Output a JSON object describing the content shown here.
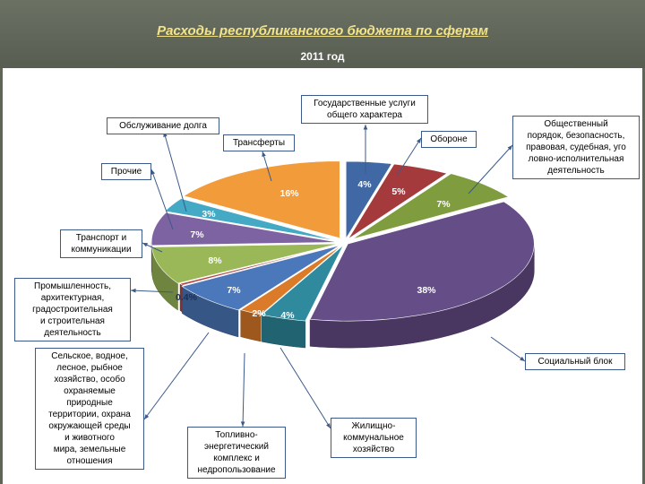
{
  "page": {
    "title": "Расходы республиканского бюджета по сферам",
    "subtitle": "2011 год"
  },
  "colors": {
    "background": "#5f6557",
    "title": "#f3e48a",
    "callout_border": "#3b5a8a"
  },
  "chart_data": {
    "type": "pie",
    "style": "3d-exploded",
    "title": "",
    "unit": "%",
    "slices": [
      {
        "label": "Государственные услуги общего характера",
        "value": 4,
        "display": "4%",
        "color": "#3f68a5"
      },
      {
        "label": "Оборона",
        "value": 5,
        "display": "5%",
        "color": "#a53a3c"
      },
      {
        "label": "Общественный порядок, безопасность, правовая, судебная, уголовно-исполнительная деятельность",
        "value": 7,
        "display": "7%",
        "color": "#7f9c3f"
      },
      {
        "label": "Социальный блок",
        "value": 38,
        "display": "38%",
        "color": "#654d87"
      },
      {
        "label": "Жилищно-коммунальное хозяйство",
        "value": 4,
        "display": "4%",
        "color": "#2f8a9e"
      },
      {
        "label": "Топливно-энергетический комплекс и недропользование",
        "value": 2,
        "display": "2%",
        "color": "#db7a28"
      },
      {
        "label": "Сельское, водное, лесное, рыбное хозяйство, особо охраняемые природные территории, охрана окружающей среды и животного мира, земельные отношения",
        "value": 7,
        "display": "7%",
        "color": "#4b78ba"
      },
      {
        "label": "Промышленность, архитектурная, градостроительная и строительная деятельность",
        "value": 0.4,
        "display": "0.4%",
        "color": "#b44747"
      },
      {
        "label": "Транспорт и коммуникации",
        "value": 8,
        "display": "8%",
        "color": "#9ab858"
      },
      {
        "label": "Прочие",
        "value": 7,
        "display": "7%",
        "color": "#7d63a1"
      },
      {
        "label": "Обслуживание долга",
        "value": 3,
        "display": "3%",
        "color": "#43a9c4"
      },
      {
        "label": "Трансферты",
        "value": 16,
        "display": "16%",
        "color": "#f29b3b"
      }
    ]
  }
}
